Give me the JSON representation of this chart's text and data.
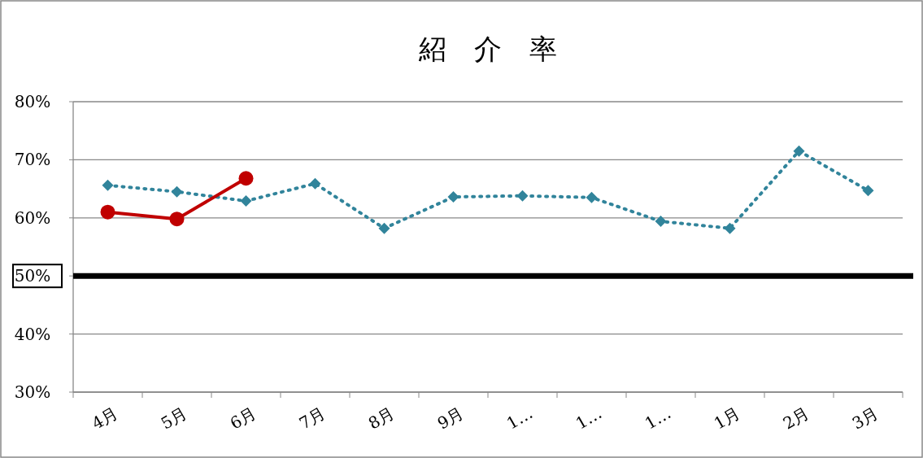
{
  "chart_data": {
    "type": "line",
    "title": "紹　介　率",
    "categories": [
      "4月",
      "5月",
      "6月",
      "7月",
      "8月",
      "9月",
      "1…",
      "1…",
      "1…",
      "1月",
      "2月",
      "3月"
    ],
    "series": [
      {
        "color": "#31849b",
        "marker": "diamond",
        "line_style": "dotted",
        "values": [
          65.6,
          64.5,
          62.9,
          65.9,
          58.2,
          63.6,
          63.8,
          63.5,
          59.4,
          58.2,
          71.5,
          64.7
        ]
      },
      {
        "color": "#c00000",
        "marker": "circle",
        "line_style": "solid",
        "values": [
          61.0,
          59.8,
          66.8,
          null,
          null,
          null,
          null,
          null,
          null,
          null,
          null,
          null
        ]
      }
    ],
    "ylim": [
      30,
      80
    ],
    "yticks": [
      {
        "value": 30,
        "label": "30%"
      },
      {
        "value": 40,
        "label": "40%"
      },
      {
        "value": 50,
        "label": "50%"
      },
      {
        "value": 60,
        "label": "60%"
      },
      {
        "value": 70,
        "label": "70%"
      },
      {
        "value": 80,
        "label": "80%"
      }
    ],
    "grid": "y",
    "ref_lines": [
      {
        "axis": "y",
        "value": 50,
        "color": "#000000",
        "line_style": "solid"
      }
    ]
  }
}
